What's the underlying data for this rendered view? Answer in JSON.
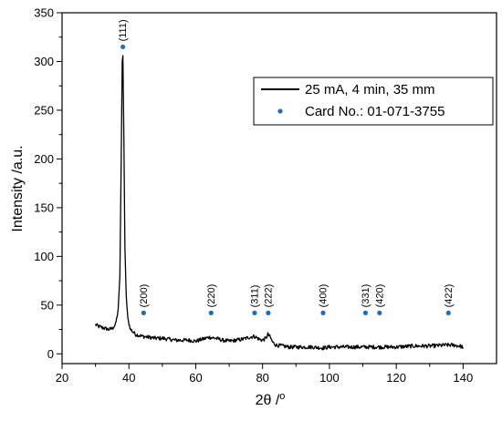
{
  "chart_data": {
    "type": "line",
    "xlabel": "2θ /",
    "xlabel_superscript": "o",
    "ylabel": "Intensity /a.u.",
    "xlim": [
      20,
      150
    ],
    "ylim": [
      -10,
      350
    ],
    "x_ticks": [
      20,
      40,
      60,
      80,
      100,
      120,
      140
    ],
    "y_ticks": [
      0,
      50,
      100,
      150,
      200,
      250,
      300,
      350
    ],
    "legend_position": "top-right",
    "series": [
      {
        "name": "25 mA, 4 min, 35 mm",
        "kind": "line",
        "color": "#000000",
        "x": [
          30,
          31,
          32,
          33,
          34,
          35,
          36,
          36.8,
          37.3,
          37.7,
          38.0,
          38.2,
          38.5,
          38.8,
          39.2,
          39.7,
          40.5,
          42,
          44,
          46,
          48,
          50,
          52,
          54,
          56,
          58,
          60,
          62,
          64,
          66,
          68,
          70,
          72,
          74,
          76,
          77.5,
          79,
          80,
          81,
          81.6,
          82.3,
          83,
          84,
          86,
          88,
          90,
          92,
          95,
          98,
          100,
          105,
          110,
          115,
          120,
          125,
          130,
          135,
          137,
          139,
          140
        ],
        "y": [
          30,
          28,
          27,
          26,
          25,
          26,
          30,
          45,
          80,
          200,
          300,
          306,
          220,
          110,
          60,
          35,
          25,
          20,
          18,
          17,
          16,
          16,
          15,
          14,
          14,
          14,
          13,
          15,
          17,
          16,
          14,
          13,
          14,
          15,
          17,
          18,
          15,
          14,
          16,
          20,
          17,
          12,
          9,
          8,
          7,
          7,
          7,
          7,
          6,
          7,
          7,
          7,
          7,
          7,
          8,
          8,
          9,
          9,
          8,
          7
        ]
      },
      {
        "name": "Card No.: 01-071-3755",
        "kind": "scatter",
        "color": "#1f6fb5",
        "x": [
          38.2,
          44.4,
          64.6,
          77.6,
          81.7,
          98.1,
          110.8,
          115.0,
          135.6
        ],
        "y": [
          315,
          42,
          42,
          42,
          42,
          42,
          42,
          42,
          42
        ],
        "labels": [
          "(111)",
          "(200)",
          "(220)",
          "(311)",
          "(222)",
          "(400)",
          "(331)",
          "(420)",
          "(422)"
        ]
      }
    ]
  }
}
